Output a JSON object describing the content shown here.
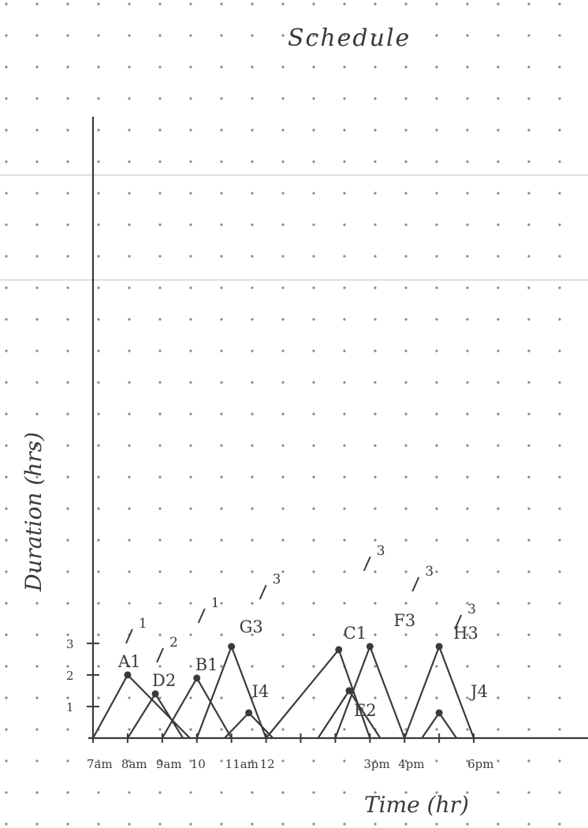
{
  "page": {
    "title": "Schedule",
    "paper_color": "#ffffff",
    "dot_color": "#8a8a8a",
    "ink_color": "#3a3a3a"
  },
  "chart_data": {
    "type": "line",
    "title": "Schedule",
    "xlabel": "Time (hr)",
    "ylabel": "Duration (hrs)",
    "x_tick_labels": [
      {
        "x": 7,
        "label": "7am"
      },
      {
        "x": 8,
        "label": "8am"
      },
      {
        "x": 9,
        "label": "9am"
      },
      {
        "x": 10,
        "label": "10"
      },
      {
        "x": 11,
        "label": "11am"
      },
      {
        "x": 12,
        "label": "12"
      },
      {
        "x": 15,
        "label": "3pm"
      },
      {
        "x": 16,
        "label": "4pm"
      },
      {
        "x": 18,
        "label": "6pm"
      }
    ],
    "y_tick_labels": [
      {
        "y": 1,
        "label": "1"
      },
      {
        "y": 2,
        "label": "2"
      },
      {
        "y": 3,
        "label": "3"
      }
    ],
    "xlim": [
      7,
      21.3
    ],
    "ylim": [
      0,
      19.5
    ],
    "series": [
      {
        "name": "A1",
        "points": [
          [
            7,
            0
          ],
          [
            8,
            2
          ],
          [
            9.8,
            0
          ]
        ],
        "peak_label": "A1",
        "annotation": "1"
      },
      {
        "name": "D2",
        "points": [
          [
            8,
            0
          ],
          [
            8.8,
            1.4
          ],
          [
            9.6,
            0
          ]
        ],
        "peak_label": "D2",
        "annotation": "2"
      },
      {
        "name": "B1",
        "points": [
          [
            9,
            0
          ],
          [
            10,
            1.9
          ],
          [
            11,
            0
          ]
        ],
        "peak_label": "B1",
        "annotation": "1"
      },
      {
        "name": "G3",
        "points": [
          [
            10,
            0
          ],
          [
            11,
            2.9
          ],
          [
            12,
            0
          ]
        ],
        "peak_label": "G3",
        "annotation": "3"
      },
      {
        "name": "I4",
        "points": [
          [
            10.8,
            0
          ],
          [
            11.5,
            0.8
          ],
          [
            12.2,
            0
          ]
        ],
        "peak_label": "I4",
        "annotation": ""
      },
      {
        "name": "C1",
        "points": [
          [
            12,
            0
          ],
          [
            14.1,
            2.8
          ],
          [
            15,
            0
          ]
        ],
        "peak_label": "C1",
        "annotation": "3"
      },
      {
        "name": "F3",
        "points": [
          [
            14,
            0
          ],
          [
            15,
            2.9
          ],
          [
            16,
            0
          ]
        ],
        "peak_label": "F3",
        "annotation": "3"
      },
      {
        "name": "E2",
        "points": [
          [
            13.5,
            0
          ],
          [
            14.4,
            1.5
          ],
          [
            15.3,
            0
          ]
        ],
        "peak_label": "E2",
        "annotation": ""
      },
      {
        "name": "H3",
        "points": [
          [
            16,
            0
          ],
          [
            17,
            2.9
          ],
          [
            18,
            0
          ]
        ],
        "peak_label": "H3",
        "annotation": "3"
      },
      {
        "name": "J4",
        "points": [
          [
            16.5,
            0
          ],
          [
            17,
            0.8
          ],
          [
            17.5,
            0
          ]
        ],
        "peak_label": "J4",
        "annotation": ""
      }
    ],
    "grid": "dot grid"
  }
}
